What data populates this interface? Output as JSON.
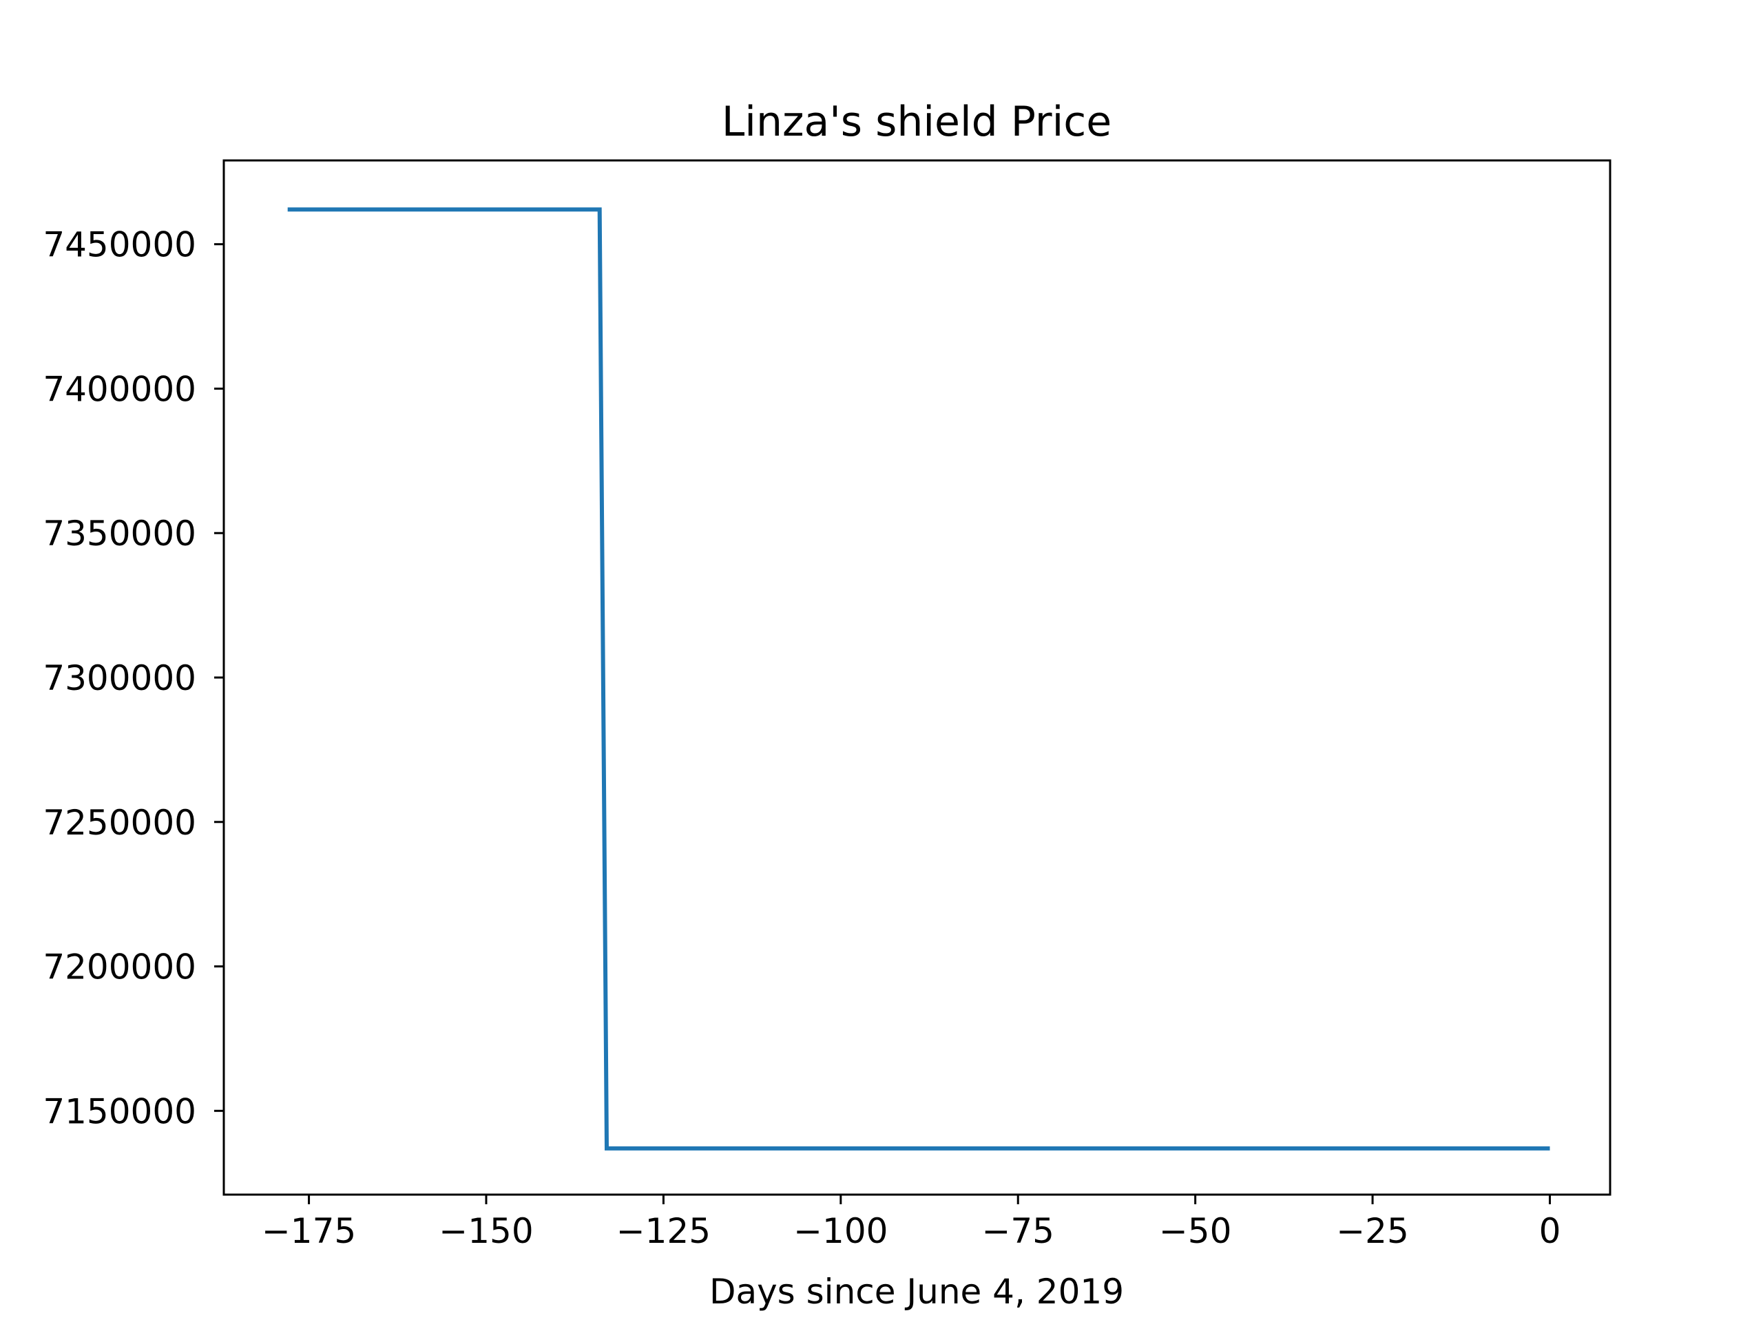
{
  "chart_data": {
    "type": "line",
    "title": "Linza's shield Price",
    "xlabel": "Days since June 4, 2019",
    "ylabel": "",
    "xlim": [
      -187,
      8.5
    ],
    "ylim": [
      7121000,
      7479000
    ],
    "xticks": [
      -175,
      -150,
      -125,
      -100,
      -75,
      -50,
      -25,
      0
    ],
    "xtick_labels": [
      "−175",
      "−150",
      "−125",
      "−100",
      "−75",
      "−50",
      "−25",
      "0"
    ],
    "yticks": [
      7150000,
      7200000,
      7250000,
      7300000,
      7350000,
      7400000,
      7450000
    ],
    "ytick_labels": [
      "7150000",
      "7200000",
      "7250000",
      "7300000",
      "7350000",
      "7400000",
      "7450000"
    ],
    "grid": false,
    "legend": "none",
    "series": [
      {
        "color": "#1f77b4",
        "points": [
          [
            -178,
            7462000
          ],
          [
            -134,
            7462000
          ],
          [
            -133,
            7137000
          ],
          [
            0,
            7137000
          ]
        ]
      }
    ]
  }
}
